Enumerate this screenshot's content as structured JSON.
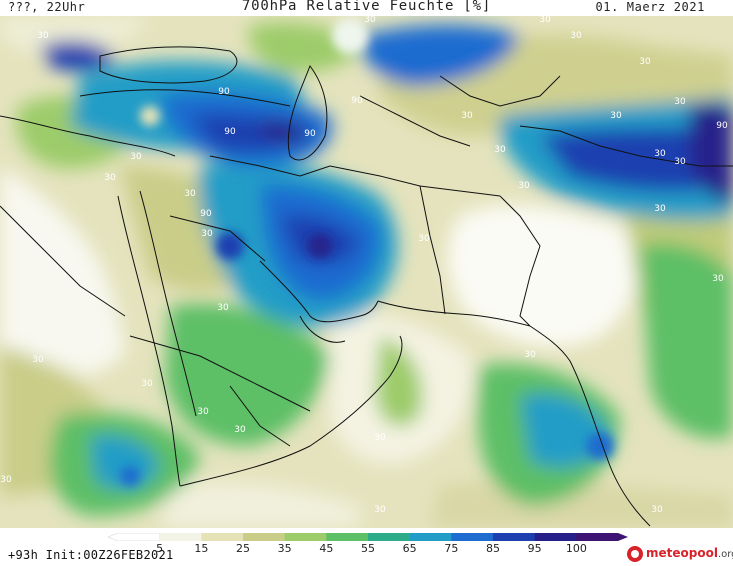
{
  "header": {
    "left": "???, 22Uhr",
    "title": "700hPa Relative Feuchte [%]",
    "right": "01. Maerz 2021"
  },
  "footer": {
    "init": "+93h Init:00Z26FEB2021",
    "logo_main": "meteopool",
    "logo_tld": ".org"
  },
  "colorbar": {
    "labels": [
      "5",
      "15",
      "25",
      "35",
      "45",
      "55",
      "65",
      "75",
      "85",
      "95",
      "100"
    ],
    "colors": [
      "#ffffff",
      "#f3f3e6",
      "#e6e2b8",
      "#c9cd88",
      "#9dcc6a",
      "#5dbf66",
      "#2eac8a",
      "#219dc7",
      "#1f6cd0",
      "#1d3fb0",
      "#27208a",
      "#3d1374"
    ]
  },
  "map": {
    "contour_labels": [
      "30",
      "30",
      "30",
      "30",
      "30",
      "30",
      "30",
      "30",
      "30",
      "30",
      "30",
      "30",
      "30",
      "30",
      "30",
      "30",
      "30",
      "30",
      "30",
      "30",
      "30",
      "30",
      "30",
      "30",
      "30",
      "30",
      "30",
      "30",
      "30",
      "90",
      "90",
      "90",
      "90",
      "90",
      "90"
    ]
  }
}
